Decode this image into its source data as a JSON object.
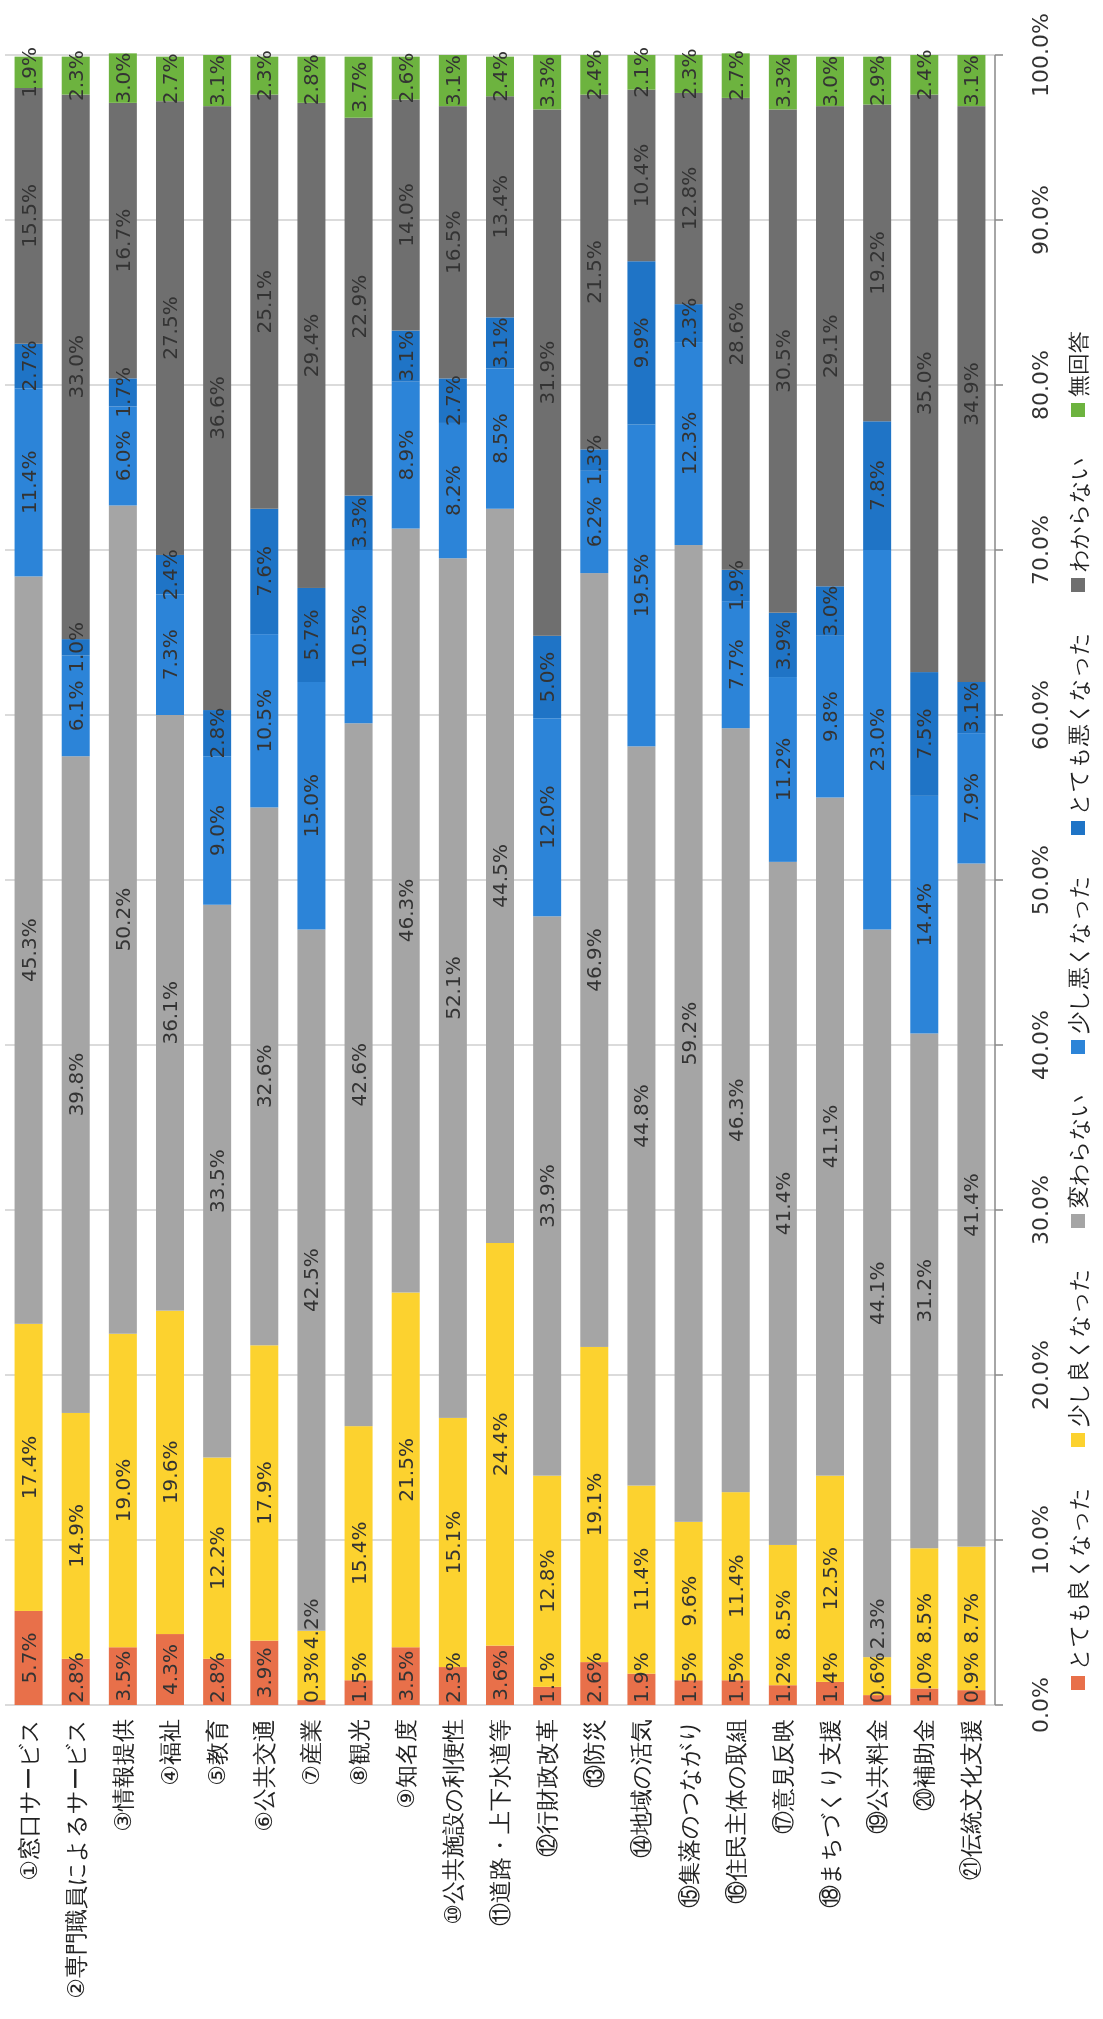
{
  "chart_data": {
    "type": "bar",
    "stacked": true,
    "grid": "y",
    "legend": "right",
    "categories": [
      "①窓口サービス",
      "②専門職員によるサービス",
      "③情報提供",
      "④福祉",
      "⑤教育",
      "⑥公共交通",
      "⑦産業",
      "⑧観光",
      "⑨知名度",
      "⑩公共施設の利便性",
      "⑪道路・上下水道等",
      "⑫行財政改革",
      "⑬防災",
      "⑭地域の活気",
      "⑮集落のつながり",
      "⑯住民主体の取組",
      "⑰意見反映",
      "⑱まちづくり支援",
      "⑲公共料金",
      "⑳補助金",
      "㉑伝統文化支援"
    ],
    "series": [
      {
        "name": "とても良くなった",
        "color": "#e8704a",
        "values": [
          5.7,
          2.8,
          3.5,
          4.3,
          2.8,
          3.9,
          0.3,
          1.5,
          3.5,
          2.3,
          3.6,
          1.1,
          2.6,
          1.9,
          1.5,
          1.5,
          1.2,
          1.4,
          0.6,
          1.0,
          0.9
        ],
        "value_labels": [
          "5.7%",
          "2.8%",
          "3.5%",
          "4.3%",
          "2.8%",
          "3.9%",
          "0.3%",
          "1.5%",
          "3.5%",
          "2.3%",
          "3.6%",
          "1.1%",
          "2.6%",
          "1.9%",
          "1.5%",
          "1.5%",
          "1.2%",
          "1.4%",
          "0.6%",
          "1.0%",
          "0.9%"
        ]
      },
      {
        "name": "少し良くなった",
        "color": "#fcd22f",
        "values": [
          17.4,
          14.9,
          19.0,
          19.6,
          12.2,
          17.9,
          4.2,
          15.4,
          21.5,
          15.1,
          24.4,
          12.8,
          19.1,
          11.4,
          9.6,
          11.4,
          8.5,
          12.5,
          2.3,
          8.5,
          8.7
        ],
        "value_labels": [
          "17.4%",
          "14.9%",
          "19.0%",
          "19.6%",
          "12.2%",
          "17.9%",
          "4.2%",
          "15.4%",
          "21.5%",
          "15.1%",
          "24.4%",
          "12.8%",
          "19.1%",
          "11.4%",
          "9.6%",
          "11.4%",
          "8.5%",
          "12.5%",
          "2.3%",
          "8.5%",
          "8.7%"
        ]
      },
      {
        "name": "変わらない",
        "color": "#a5a5a5",
        "values": [
          45.3,
          39.8,
          50.2,
          36.1,
          33.5,
          32.6,
          42.5,
          42.6,
          46.3,
          52.1,
          44.5,
          33.9,
          46.9,
          44.8,
          59.2,
          46.3,
          41.4,
          41.1,
          44.1,
          31.2,
          41.4
        ],
        "value_labels": [
          "45.3%",
          "39.8%",
          "50.2%",
          "36.1%",
          "33.5%",
          "32.6%",
          "42.5%",
          "42.6%",
          "46.3%",
          "52.1%",
          "44.5%",
          "33.9%",
          "46.9%",
          "44.8%",
          "59.2%",
          "46.3%",
          "41.4%",
          "41.1%",
          "44.1%",
          "31.2%",
          "41.4%"
        ]
      },
      {
        "name": "少し悪くなった",
        "color": "#2c84d8",
        "values": [
          11.4,
          6.1,
          6.0,
          7.3,
          9.0,
          10.5,
          15.0,
          10.5,
          8.9,
          8.2,
          8.5,
          12.0,
          6.2,
          19.5,
          12.3,
          7.7,
          11.2,
          9.8,
          23.0,
          14.4,
          7.9
        ],
        "value_labels": [
          "11.4%",
          "6.1%",
          "6.0%",
          "7.3%",
          "9.0%",
          "10.5%",
          "15.0%",
          "10.5%",
          "8.9%",
          "8.2%",
          "8.5%",
          "12.0%",
          "6.2%",
          "19.5%",
          "12.3%",
          "7.7%",
          "11.2%",
          "9.8%",
          "23.0%",
          "14.4%",
          "7.9%"
        ]
      },
      {
        "name": "とても悪くなった",
        "color": "#1f74c6",
        "values": [
          2.7,
          1.0,
          1.7,
          2.4,
          2.8,
          7.6,
          5.7,
          3.3,
          3.1,
          2.7,
          3.1,
          5.0,
          1.3,
          9.9,
          2.3,
          1.9,
          3.9,
          3.0,
          7.8,
          7.5,
          3.1
        ],
        "value_labels": [
          "2.7%",
          "1.0%",
          "1.7%",
          "2.4%",
          "2.8%",
          "7.6%",
          "5.7%",
          "3.3%",
          "3.1%",
          "2.7%",
          "3.1%",
          "5.0%",
          "1.3%",
          "9.9%",
          "2.3%",
          "1.9%",
          "3.9%",
          "3.0%",
          "7.8%",
          "7.5%",
          "3.1%"
        ]
      },
      {
        "name": "わからない",
        "color": "#6f6f6f",
        "values": [
          15.5,
          33.0,
          16.7,
          27.5,
          36.6,
          25.1,
          29.4,
          22.9,
          14.0,
          16.5,
          13.4,
          31.9,
          21.5,
          10.4,
          12.8,
          28.6,
          30.5,
          29.1,
          19.2,
          35.0,
          34.9
        ],
        "value_labels": [
          "15.5%",
          "33.0%",
          "16.7%",
          "27.5%",
          "36.6%",
          "25.1%",
          "29.4%",
          "22.9%",
          "14.0%",
          "16.5%",
          "13.4%",
          "31.9%",
          "21.5%",
          "10.4%",
          "12.8%",
          "28.6%",
          "30.5%",
          "29.1%",
          "19.2%",
          "35.0%",
          "34.9%"
        ]
      },
      {
        "name": "無回答",
        "color": "#6db33f",
        "values": [
          1.9,
          2.3,
          3.0,
          2.7,
          3.1,
          2.3,
          2.8,
          3.7,
          2.6,
          3.1,
          2.4,
          3.3,
          2.4,
          2.1,
          2.3,
          2.7,
          3.3,
          3.0,
          2.9,
          2.4,
          3.1
        ],
        "value_labels": [
          "1.9%",
          "2.3%",
          "3.0%",
          "2.7%",
          "3.1%",
          "2.3%",
          "2.8%",
          "3.7%",
          "2.6%",
          "3.1%",
          "2.4%",
          "3.3%",
          "2.4%",
          "2.1%",
          "2.3%",
          "2.7%",
          "3.3%",
          "3.0%",
          "2.9%",
          "2.4%",
          "3.1%"
        ]
      }
    ],
    "ylim": [
      0,
      100
    ],
    "yticks": [
      {
        "value": 0,
        "label": "0.0%"
      },
      {
        "value": 10,
        "label": "10.0%"
      },
      {
        "value": 20,
        "label": "20.0%"
      },
      {
        "value": 30,
        "label": "30.0%"
      },
      {
        "value": 40,
        "label": "40.0%"
      },
      {
        "value": 50,
        "label": "50.0%"
      },
      {
        "value": 60,
        "label": "60.0%"
      },
      {
        "value": 70,
        "label": "70.0%"
      },
      {
        "value": 80,
        "label": "80.0%"
      },
      {
        "value": 90,
        "label": "90.0%"
      },
      {
        "value": 100,
        "label": "100.0%"
      }
    ]
  }
}
